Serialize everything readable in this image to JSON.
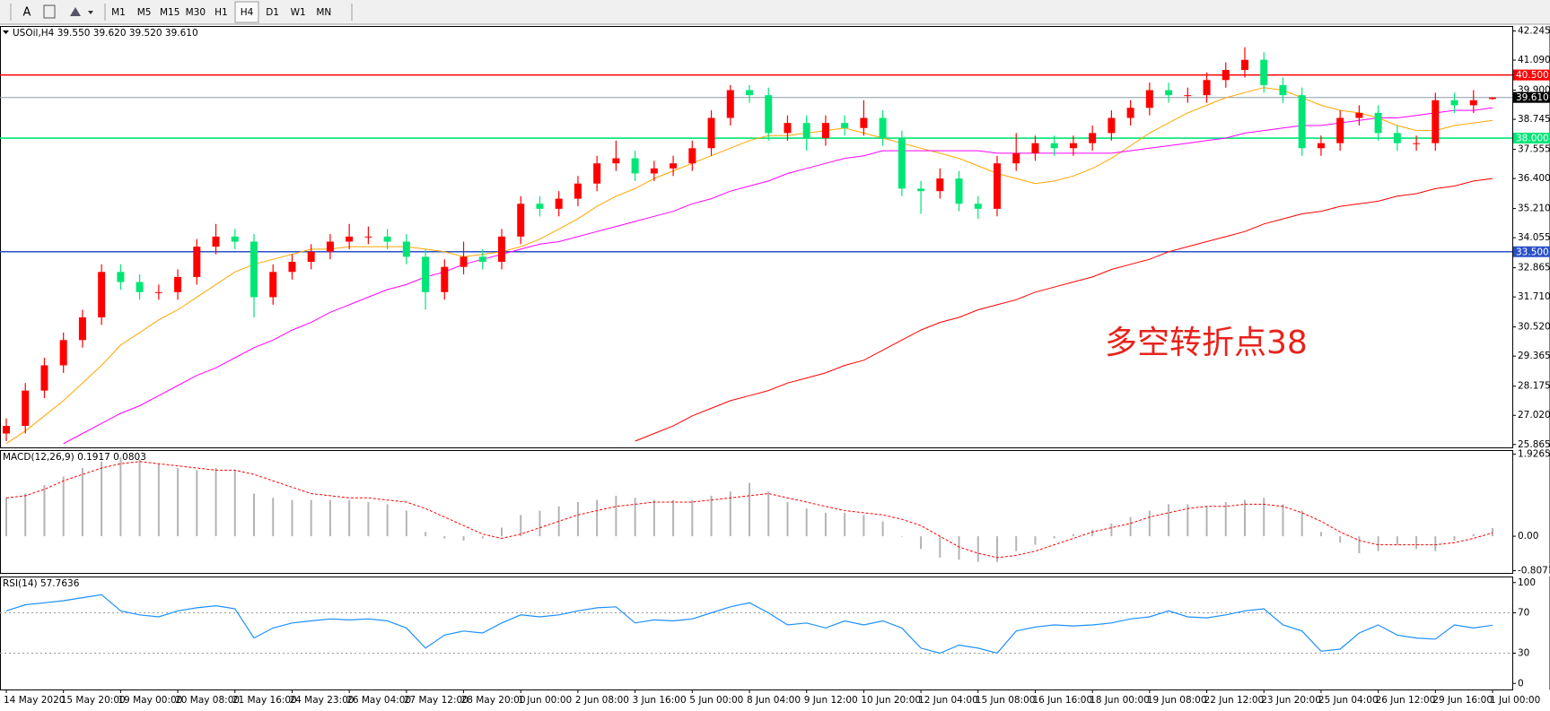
{
  "toolbar": {
    "text_tool": "A",
    "timeframes": [
      "M1",
      "M5",
      "M15",
      "M30",
      "H1",
      "H4",
      "D1",
      "W1",
      "MN"
    ],
    "active": "H4"
  },
  "chart_data": [
    {
      "type": "candlestick",
      "title": "USOil,H4  39.550 39.620 39.520 39.610",
      "annotation": "多空转折点38",
      "annotation_color": "#e8221b",
      "up_color": "#ff0000",
      "down_color": "#00e676",
      "categories": [
        "14 May 2020",
        null,
        null,
        "15 May 20:00",
        null,
        null,
        "19 May 00:00",
        null,
        null,
        "20 May 08:00",
        null,
        null,
        "21 May 16:00",
        null,
        null,
        "24 May 23:00",
        null,
        null,
        "26 May 04:00",
        null,
        null,
        "27 May 12:00",
        null,
        null,
        "28 May 20:00",
        null,
        null,
        "1 Jun 00:00",
        null,
        null,
        "2 Jun 08:00",
        null,
        null,
        "3 Jun 16:00",
        null,
        null,
        "5 Jun 00:00",
        null,
        null,
        "8 Jun 04:00",
        null,
        null,
        "9 Jun 12:00",
        null,
        null,
        "10 Jun 20:00",
        null,
        null,
        "12 Jun 04:00",
        null,
        null,
        "15 Jun 08:00",
        null,
        null,
        "16 Jun 16:00",
        null,
        null,
        "18 Jun 00:00",
        null,
        null,
        "19 Jun 08:00",
        null,
        null,
        "22 Jun 12:00",
        null,
        null,
        "23 Jun 20:00",
        null,
        null,
        "25 Jun 04:00",
        null,
        null,
        "26 Jun 12:00",
        null,
        null,
        "29 Jun 16:00",
        null,
        null,
        "1 Jul 00:00"
      ],
      "open": [
        26.3,
        26.6,
        28.0,
        29.0,
        30.0,
        30.9,
        32.7,
        32.3,
        31.9,
        31.9,
        32.5,
        33.7,
        34.1,
        33.9,
        31.7,
        32.7,
        33.1,
        33.5,
        33.9,
        34.1,
        34.1,
        33.9,
        33.3,
        31.9,
        32.9,
        33.3,
        33.1,
        34.1,
        35.4,
        35.2,
        35.6,
        36.2,
        37.0,
        37.2,
        36.6,
        36.8,
        37.0,
        37.6,
        38.8,
        39.9,
        39.7,
        38.2,
        38.6,
        38.0,
        38.6,
        38.4,
        38.8,
        38.0,
        36.0,
        35.9,
        36.4,
        35.4,
        35.2,
        37.0,
        37.4,
        37.8,
        37.6,
        37.8,
        38.2,
        38.8,
        39.2,
        39.9,
        39.7,
        39.7,
        40.3,
        40.7,
        41.1,
        40.1,
        39.7,
        37.6,
        37.8,
        38.8,
        39.0,
        38.2,
        37.8,
        37.8,
        39.5,
        39.3,
        39.55
      ],
      "high": [
        26.9,
        28.3,
        29.3,
        30.3,
        31.2,
        33.0,
        33.0,
        32.6,
        32.2,
        32.8,
        34.0,
        34.6,
        34.4,
        34.2,
        33.0,
        33.4,
        33.8,
        34.2,
        34.6,
        34.5,
        34.4,
        34.2,
        33.6,
        33.2,
        33.9,
        33.6,
        34.4,
        35.7,
        35.7,
        35.9,
        36.5,
        37.3,
        37.9,
        37.5,
        37.1,
        37.3,
        37.9,
        39.1,
        40.1,
        40.1,
        40.0,
        38.9,
        38.9,
        38.9,
        38.9,
        39.5,
        39.1,
        38.3,
        36.3,
        36.8,
        36.7,
        35.7,
        37.3,
        38.2,
        38.1,
        38.1,
        38.1,
        38.5,
        39.1,
        39.5,
        40.2,
        40.2,
        40.0,
        40.6,
        41.0,
        41.6,
        41.4,
        40.4,
        40.0,
        38.1,
        39.1,
        39.3,
        39.3,
        38.5,
        38.1,
        39.8,
        39.8,
        39.9,
        39.62
      ],
      "low": [
        26.0,
        26.3,
        27.7,
        28.7,
        29.7,
        30.6,
        32.0,
        31.6,
        31.6,
        31.6,
        32.2,
        33.4,
        33.6,
        30.9,
        31.4,
        32.4,
        32.8,
        33.2,
        33.6,
        33.8,
        33.6,
        33.0,
        31.2,
        31.6,
        32.6,
        32.8,
        32.8,
        33.8,
        34.9,
        34.9,
        35.3,
        35.9,
        36.7,
        36.3,
        36.3,
        36.5,
        36.7,
        37.3,
        38.5,
        39.4,
        37.9,
        37.9,
        37.5,
        37.7,
        38.1,
        38.1,
        37.7,
        35.7,
        35.0,
        35.6,
        35.1,
        34.8,
        34.9,
        36.7,
        37.1,
        37.3,
        37.3,
        37.5,
        37.9,
        38.5,
        38.9,
        39.4,
        39.4,
        39.4,
        40.0,
        40.4,
        39.8,
        39.4,
        37.3,
        37.3,
        37.5,
        38.5,
        37.9,
        37.5,
        37.5,
        37.5,
        39.0,
        39.0,
        39.52
      ],
      "close": [
        26.6,
        28.0,
        29.0,
        30.0,
        30.9,
        32.7,
        32.3,
        31.9,
        31.9,
        32.5,
        33.7,
        34.1,
        33.9,
        31.7,
        32.7,
        33.1,
        33.5,
        33.9,
        34.1,
        34.1,
        33.9,
        33.3,
        31.9,
        32.9,
        33.3,
        33.1,
        34.1,
        35.4,
        35.2,
        35.6,
        36.2,
        37.0,
        37.2,
        36.6,
        36.8,
        37.0,
        37.6,
        38.8,
        39.9,
        39.7,
        38.2,
        38.6,
        38.0,
        38.6,
        38.4,
        38.8,
        38.0,
        36.0,
        35.9,
        36.4,
        35.4,
        35.2,
        37.0,
        37.4,
        37.8,
        37.6,
        37.8,
        38.2,
        38.8,
        39.2,
        39.9,
        39.7,
        39.7,
        40.3,
        40.7,
        41.1,
        40.1,
        39.7,
        37.6,
        37.8,
        38.8,
        39.0,
        38.2,
        37.8,
        37.8,
        39.5,
        39.3,
        39.5,
        39.61
      ],
      "lines": [
        {
          "color": "#ffa500",
          "values": [
            25.9,
            26.4,
            27.0,
            27.6,
            28.3,
            29.0,
            29.8,
            30.3,
            30.8,
            31.2,
            31.7,
            32.2,
            32.7,
            33.0,
            33.2,
            33.4,
            33.6,
            33.6,
            33.7,
            33.7,
            33.7,
            33.7,
            33.6,
            33.5,
            33.3,
            33.4,
            33.5,
            33.7,
            34.0,
            34.4,
            34.8,
            35.3,
            35.7,
            36.0,
            36.4,
            36.7,
            37.0,
            37.3,
            37.6,
            37.9,
            38.1,
            38.1,
            38.2,
            38.3,
            38.4,
            38.2,
            38.0,
            37.8,
            37.6,
            37.4,
            37.2,
            36.9,
            36.6,
            36.4,
            36.2,
            36.3,
            36.5,
            36.8,
            37.2,
            37.7,
            38.2,
            38.6,
            39.0,
            39.3,
            39.6,
            39.8,
            40.0,
            39.9,
            39.6,
            39.3,
            39.1,
            39.0,
            38.8,
            38.5,
            38.3,
            38.3,
            38.5,
            38.6,
            38.7
          ]
        },
        {
          "color": "#ff00ff",
          "values": [
            null,
            null,
            null,
            25.9,
            26.3,
            26.7,
            27.1,
            27.4,
            27.8,
            28.2,
            28.6,
            28.9,
            29.3,
            29.7,
            30.0,
            30.4,
            30.7,
            31.1,
            31.4,
            31.7,
            32.0,
            32.2,
            32.5,
            32.7,
            33.0,
            33.2,
            33.4,
            33.6,
            33.8,
            33.9,
            34.1,
            34.3,
            34.5,
            34.7,
            34.9,
            35.1,
            35.4,
            35.6,
            35.9,
            36.1,
            36.3,
            36.6,
            36.8,
            37.0,
            37.2,
            37.3,
            37.5,
            37.5,
            37.5,
            37.5,
            37.5,
            37.5,
            37.4,
            37.4,
            37.4,
            37.4,
            37.4,
            37.4,
            37.4,
            37.5,
            37.6,
            37.7,
            37.8,
            37.9,
            38.0,
            38.2,
            38.3,
            38.4,
            38.5,
            38.5,
            38.6,
            38.7,
            38.8,
            38.8,
            38.9,
            39.0,
            39.1,
            39.1,
            39.2
          ]
        },
        {
          "color": "#ff0000",
          "values": [
            null,
            null,
            null,
            null,
            null,
            null,
            null,
            null,
            null,
            null,
            null,
            null,
            null,
            null,
            null,
            null,
            null,
            null,
            null,
            null,
            null,
            null,
            null,
            null,
            null,
            null,
            null,
            null,
            null,
            null,
            null,
            null,
            null,
            26.0,
            26.3,
            26.6,
            27.0,
            27.3,
            27.6,
            27.8,
            28.0,
            28.3,
            28.5,
            28.7,
            29.0,
            29.2,
            29.6,
            30.0,
            30.4,
            30.7,
            30.9,
            31.2,
            31.4,
            31.6,
            31.9,
            32.1,
            32.3,
            32.5,
            32.8,
            33.0,
            33.2,
            33.5,
            33.7,
            33.9,
            34.1,
            34.3,
            34.6,
            34.8,
            35.0,
            35.1,
            35.3,
            35.4,
            35.5,
            35.7,
            35.8,
            36.0,
            36.1,
            36.3,
            36.4
          ]
        }
      ],
      "levels": [
        {
          "value": 40.5,
          "label": "40.500",
          "color": "#ff0000",
          "label_bg": "#ff0000"
        },
        {
          "value": 39.61,
          "label": "39.610",
          "color": "#8a9aaa",
          "label_bg": "#000000"
        },
        {
          "value": 38.0,
          "label": "38.000",
          "color": "#00e676",
          "label_bg": "#00e676"
        },
        {
          "value": 33.5,
          "label": "33.500",
          "color": "#2a50c8",
          "label_bg": "#2a50c8"
        }
      ],
      "ylim": [
        25.75,
        42.44
      ],
      "yticks": [
        42.245,
        {
          "value": 41.09,
          "label": "41.090"
        },
        {
          "value": 39.9,
          "label": "39.900"
        },
        38.745,
        37.555,
        {
          "value": 36.4,
          "label": "36.400"
        },
        {
          "value": 35.21,
          "label": "35.210"
        },
        34.055,
        32.865,
        {
          "value": 31.71,
          "label": "31.710"
        },
        {
          "value": 30.52,
          "label": "30.520"
        },
        29.365,
        28.175,
        {
          "value": 27.02,
          "label": "27.020"
        },
        25.865
      ]
    },
    {
      "type": "macd",
      "title": "MACD(12,26,9) 0.1917 0.0803",
      "histogram_color": "#b4b4b4",
      "signal_color": "#ff0000",
      "histogram": [
        0.9,
        1.0,
        1.2,
        1.4,
        1.6,
        1.75,
        1.85,
        1.8,
        1.7,
        1.6,
        1.55,
        1.6,
        1.55,
        1.0,
        0.9,
        0.85,
        0.85,
        0.85,
        0.85,
        0.8,
        0.75,
        0.6,
        0.1,
        -0.05,
        -0.1,
        -0.05,
        0.2,
        0.5,
        0.6,
        0.7,
        0.8,
        0.85,
        0.95,
        0.9,
        0.85,
        0.85,
        0.85,
        0.95,
        1.05,
        1.25,
        1.05,
        0.8,
        0.65,
        0.55,
        0.55,
        0.5,
        0.35,
        0.0,
        -0.3,
        -0.5,
        -0.55,
        -0.6,
        -0.6,
        -0.35,
        -0.2,
        -0.05,
        0.05,
        0.15,
        0.3,
        0.45,
        0.6,
        0.75,
        0.75,
        0.7,
        0.8,
        0.85,
        0.9,
        0.75,
        0.6,
        0.1,
        -0.15,
        -0.4,
        -0.35,
        -0.2,
        -0.3,
        -0.35,
        -0.1,
        0.05,
        0.1917
      ],
      "signal": [
        0.9,
        0.95,
        1.1,
        1.3,
        1.45,
        1.6,
        1.7,
        1.75,
        1.7,
        1.65,
        1.6,
        1.55,
        1.55,
        1.45,
        1.3,
        1.15,
        1.0,
        0.95,
        0.9,
        0.9,
        0.85,
        0.8,
        0.65,
        0.45,
        0.25,
        0.05,
        -0.05,
        0.05,
        0.2,
        0.35,
        0.5,
        0.6,
        0.7,
        0.75,
        0.8,
        0.8,
        0.8,
        0.85,
        0.9,
        0.95,
        1.0,
        0.9,
        0.8,
        0.7,
        0.6,
        0.55,
        0.5,
        0.4,
        0.25,
        0.0,
        -0.25,
        -0.4,
        -0.5,
        -0.45,
        -0.35,
        -0.2,
        -0.05,
        0.1,
        0.2,
        0.3,
        0.45,
        0.55,
        0.65,
        0.7,
        0.7,
        0.75,
        0.75,
        0.7,
        0.55,
        0.35,
        0.1,
        -0.1,
        -0.2,
        -0.2,
        -0.2,
        -0.2,
        -0.15,
        -0.05,
        0.0803
      ],
      "ylim": [
        -0.86,
        2.02
      ],
      "yticks": [
        1.9265,
        {
          "value": 0,
          "label": "0.00"
        },
        -0.8071
      ]
    },
    {
      "type": "line",
      "title": "RSI(14) 57.7636",
      "color": "#1e90ff",
      "values": [
        72,
        78,
        80,
        82,
        85,
        88,
        72,
        68,
        66,
        72,
        75,
        77,
        74,
        45,
        55,
        60,
        62,
        64,
        63,
        64,
        62,
        55,
        35,
        48,
        52,
        50,
        60,
        68,
        66,
        68,
        72,
        75,
        76,
        60,
        63,
        62,
        64,
        70,
        76,
        80,
        70,
        58,
        60,
        55,
        62,
        58,
        62,
        55,
        35,
        30,
        38,
        35,
        30,
        52,
        56,
        58,
        57,
        58,
        60,
        64,
        66,
        72,
        66,
        65,
        68,
        72,
        74,
        58,
        52,
        32,
        34,
        50,
        58,
        48,
        45,
        44,
        58,
        55,
        57.7636
      ],
      "levels": [
        70,
        30
      ],
      "ylim": [
        -6,
        106
      ],
      "yticks": [
        100,
        70,
        30,
        0
      ]
    }
  ]
}
